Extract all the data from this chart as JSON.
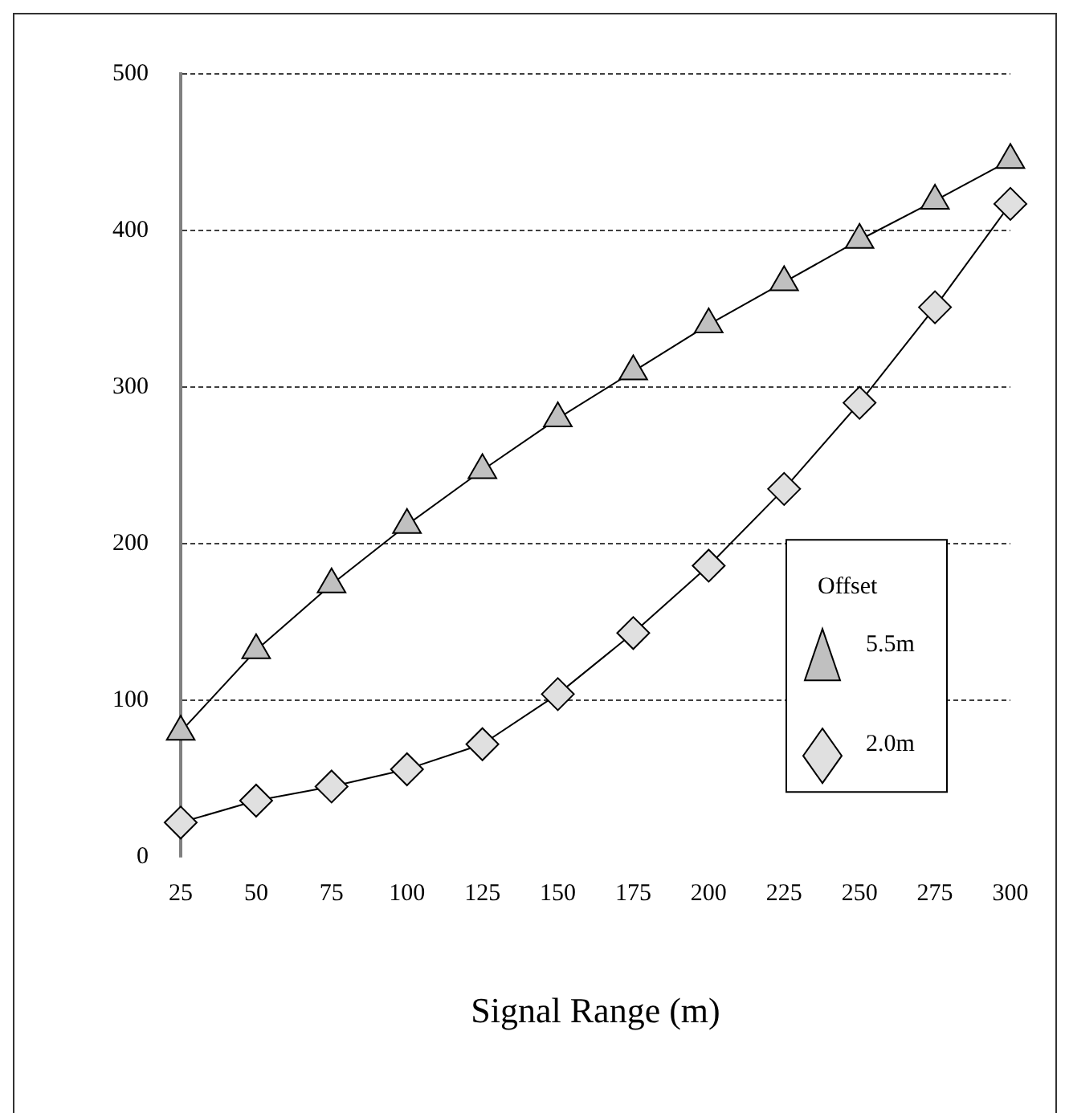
{
  "chart_data": {
    "type": "line",
    "xlabel": "Signal Range (m)",
    "legend_title": "Offset",
    "legend": "bottom right",
    "grid": "y",
    "line_style": "solid",
    "x": [
      25,
      50,
      75,
      100,
      125,
      150,
      175,
      200,
      225,
      250,
      275,
      300
    ],
    "xlim": [
      25,
      300
    ],
    "xticks": [
      25,
      50,
      75,
      100,
      125,
      150,
      175,
      200,
      225,
      250,
      275,
      300
    ],
    "ylim": [
      0,
      500
    ],
    "yticks": [
      0,
      100,
      200,
      300,
      400,
      500
    ],
    "series": [
      {
        "name": "5.5m",
        "color": "#c0c0c0",
        "marker": "triangle",
        "values": [
          80,
          132,
          174,
          212,
          247,
          280,
          310,
          340,
          367,
          394,
          419,
          445
        ]
      },
      {
        "name": "2.0m",
        "color": "#e0e0e0",
        "marker": "diamond",
        "values": [
          22,
          36,
          45,
          56,
          72,
          104,
          143,
          186,
          235,
          290,
          351,
          417
        ]
      }
    ]
  }
}
